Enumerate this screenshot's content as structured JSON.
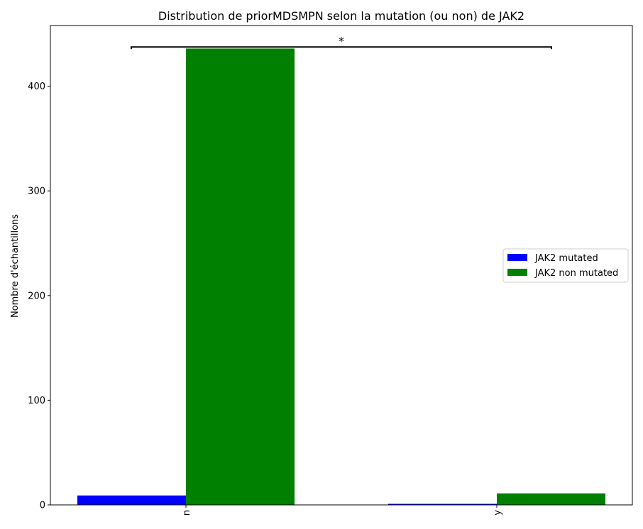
{
  "chart_data": {
    "type": "bar",
    "title": "Distribution de priorMDSMPN selon la mutation (ou non) de JAK2",
    "xlabel": "",
    "ylabel": "Nombre d'échantillons",
    "categories": [
      "n",
      "y"
    ],
    "series": [
      {
        "name": "JAK2 mutated",
        "values": [
          9,
          1
        ],
        "color": "#0000ff"
      },
      {
        "name": "JAK2 non mutated",
        "values": [
          436,
          11
        ],
        "color": "#008000"
      }
    ],
    "ylim": [
      0,
      458
    ],
    "yticks": [
      0,
      100,
      200,
      300,
      400
    ],
    "grid": false,
    "legend_position": "center-right",
    "annotation": {
      "text": "*",
      "bracket_value": 437.5
    }
  }
}
